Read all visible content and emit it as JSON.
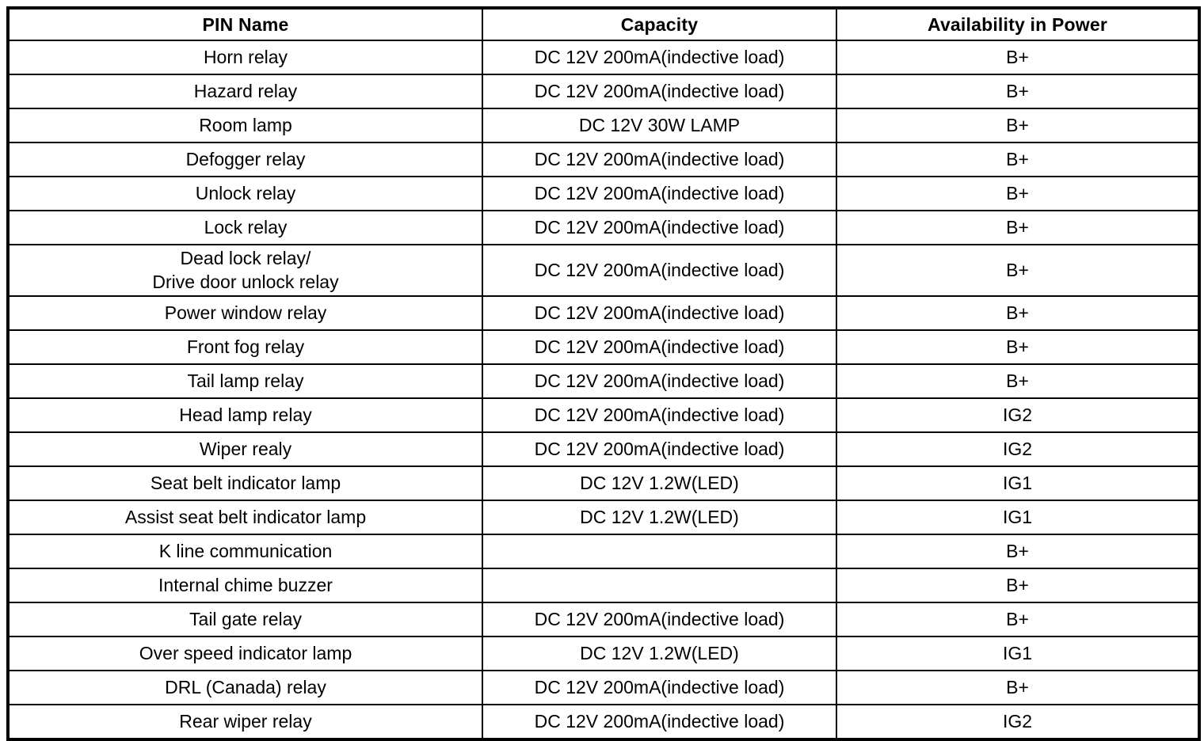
{
  "table": {
    "columns": [
      "PIN Name",
      "Capacity",
      "Availability in Power"
    ],
    "rows": [
      {
        "pin": "Horn relay",
        "capacity": "DC 12V 200mA(indective load)",
        "power": "B+"
      },
      {
        "pin": "Hazard relay",
        "capacity": "DC 12V 200mA(indective load)",
        "power": "B+"
      },
      {
        "pin": "Room lamp",
        "capacity": "DC 12V 30W LAMP",
        "power": "B+"
      },
      {
        "pin": "Defogger relay",
        "capacity": "DC 12V 200mA(indective load)",
        "power": "B+"
      },
      {
        "pin": "Unlock relay",
        "capacity": "DC 12V 200mA(indective load)",
        "power": "B+"
      },
      {
        "pin": "Lock relay",
        "capacity": "DC 12V 200mA(indective load)",
        "power": "B+"
      },
      {
        "pin": "Dead lock relay/\nDrive door unlock relay",
        "capacity": "DC 12V 200mA(indective load)",
        "power": "B+"
      },
      {
        "pin": "Power window relay",
        "capacity": "DC 12V 200mA(indective load)",
        "power": "B+"
      },
      {
        "pin": "Front fog relay",
        "capacity": "DC 12V 200mA(indective load)",
        "power": "B+"
      },
      {
        "pin": "Tail lamp relay",
        "capacity": "DC 12V 200mA(indective load)",
        "power": "B+"
      },
      {
        "pin": "Head lamp relay",
        "capacity": "DC 12V 200mA(indective load)",
        "power": "IG2"
      },
      {
        "pin": "Wiper realy",
        "capacity": "DC 12V 200mA(indective load)",
        "power": "IG2"
      },
      {
        "pin": "Seat belt indicator lamp",
        "capacity": "DC 12V 1.2W(LED)",
        "power": "IG1"
      },
      {
        "pin": "Assist seat belt indicator lamp",
        "capacity": "DC 12V 1.2W(LED)",
        "power": "IG1"
      },
      {
        "pin": "K line communication",
        "capacity": "",
        "power": "B+"
      },
      {
        "pin": "Internal chime buzzer",
        "capacity": "",
        "power": "B+"
      },
      {
        "pin": "Tail gate relay",
        "capacity": "DC 12V 200mA(indective load)",
        "power": "B+"
      },
      {
        "pin": "Over speed indicator lamp",
        "capacity": "DC 12V 1.2W(LED)",
        "power": "IG1"
      },
      {
        "pin": "DRL (Canada) relay",
        "capacity": "DC 12V 200mA(indective load)",
        "power": "B+"
      },
      {
        "pin": "Rear wiper relay",
        "capacity": "DC 12V 200mA(indective load)",
        "power": "IG2"
      }
    ],
    "border_color": "#000000",
    "background_color": "#ffffff",
    "text_color": "#000000"
  }
}
